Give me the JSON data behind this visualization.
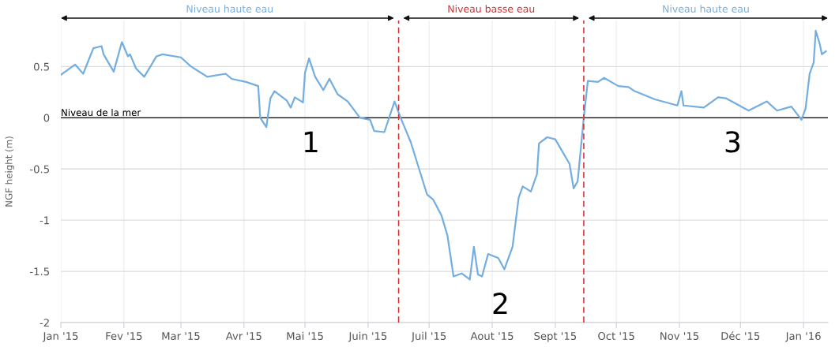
{
  "chart_data": {
    "type": "line",
    "ylabel": "NGF height (m)",
    "x": [
      "2015-01-01",
      "2015-01-08",
      "2015-01-12",
      "2015-01-17",
      "2015-01-21",
      "2015-01-22",
      "2015-01-27",
      "2015-01-31",
      "2015-02-03",
      "2015-02-04",
      "2015-02-07",
      "2015-02-11",
      "2015-02-17",
      "2015-02-20",
      "2015-03-01",
      "2015-03-06",
      "2015-03-14",
      "2015-03-23",
      "2015-03-26",
      "2015-04-02",
      "2015-04-08",
      "2015-04-09",
      "2015-04-12",
      "2015-04-14",
      "2015-04-16",
      "2015-04-22",
      "2015-04-24",
      "2015-04-26",
      "2015-04-30",
      "2015-05-01",
      "2015-05-03",
      "2015-05-06",
      "2015-05-10",
      "2015-05-13",
      "2015-05-17",
      "2015-05-22",
      "2015-05-28",
      "2015-06-02",
      "2015-06-04",
      "2015-06-09",
      "2015-06-14",
      "2015-06-17",
      "2015-06-22",
      "2015-06-30",
      "2015-07-03",
      "2015-07-07",
      "2015-07-10",
      "2015-07-13",
      "2015-07-17",
      "2015-07-21",
      "2015-07-23",
      "2015-07-25",
      "2015-07-27",
      "2015-07-30",
      "2015-08-04",
      "2015-08-07",
      "2015-08-11",
      "2015-08-14",
      "2015-08-16",
      "2015-08-20",
      "2015-08-23",
      "2015-08-24",
      "2015-08-28",
      "2015-09-01",
      "2015-09-08",
      "2015-09-10",
      "2015-09-12",
      "2015-09-15",
      "2015-09-17",
      "2015-09-22",
      "2015-09-25",
      "2015-10-02",
      "2015-10-07",
      "2015-10-10",
      "2015-10-20",
      "2015-10-31",
      "2015-11-02",
      "2015-11-03",
      "2015-11-13",
      "2015-11-20",
      "2015-11-24",
      "2015-12-05",
      "2015-12-14",
      "2015-12-19",
      "2015-12-26",
      "2015-12-31",
      "2016-01-02",
      "2016-01-04",
      "2016-01-06",
      "2016-01-07",
      "2016-01-09",
      "2016-01-10",
      "2016-01-12"
    ],
    "series": [
      {
        "color": "#74aee0",
        "values": [
          0.42,
          0.52,
          0.43,
          0.68,
          0.7,
          0.62,
          0.45,
          0.74,
          0.6,
          0.62,
          0.48,
          0.4,
          0.6,
          0.62,
          0.59,
          0.5,
          0.4,
          0.43,
          0.38,
          0.35,
          0.31,
          0.0,
          -0.09,
          0.19,
          0.26,
          0.17,
          0.1,
          0.2,
          0.15,
          0.44,
          0.58,
          0.4,
          0.27,
          0.38,
          0.23,
          0.16,
          0.0,
          -0.02,
          -0.13,
          -0.14,
          0.16,
          0.0,
          -0.24,
          -0.75,
          -0.8,
          -0.95,
          -1.15,
          -1.55,
          -1.52,
          -1.58,
          -1.26,
          -1.53,
          -1.55,
          -1.33,
          -1.37,
          -1.48,
          -1.26,
          -0.78,
          -0.67,
          -0.72,
          -0.55,
          -0.25,
          -0.19,
          -0.21,
          -0.45,
          -0.69,
          -0.62,
          0.0,
          0.36,
          0.35,
          0.39,
          0.31,
          0.3,
          0.26,
          0.18,
          0.12,
          0.26,
          0.12,
          0.1,
          0.2,
          0.19,
          0.07,
          0.16,
          0.07,
          0.11,
          -0.02,
          0.09,
          0.43,
          0.54,
          0.85,
          0.72,
          0.62,
          0.65
        ]
      }
    ],
    "xlim": [
      "2015-01-01",
      "2016-01-13"
    ],
    "xticks": [
      {
        "value": "2015-01-01",
        "label": "Jan '15"
      },
      {
        "value": "2015-02-01",
        "label": "Fev '15"
      },
      {
        "value": "2015-03-01",
        "label": "Mar '15"
      },
      {
        "value": "2015-04-01",
        "label": "Avr '15"
      },
      {
        "value": "2015-05-01",
        "label": "Mai '15"
      },
      {
        "value": "2015-06-01",
        "label": "Juin '15"
      },
      {
        "value": "2015-07-01",
        "label": "Juil '15"
      },
      {
        "value": "2015-08-01",
        "label": "Aout '15"
      },
      {
        "value": "2015-09-01",
        "label": "Sept '15"
      },
      {
        "value": "2015-10-01",
        "label": "Oct '15"
      },
      {
        "value": "2015-11-01",
        "label": "Nov '15"
      },
      {
        "value": "2015-12-01",
        "label": "Déc '15"
      },
      {
        "value": "2016-01-01",
        "label": "Jan '16"
      }
    ],
    "ylim": [
      -2,
      0.95
    ],
    "yticks": [
      -2,
      -1.5,
      -1,
      -0.5,
      0,
      0.5
    ],
    "grid": true,
    "ref_lines": [
      {
        "axis": "y",
        "value": 0,
        "label": "Niveau de la mer",
        "color": "#000000",
        "line_style": "solid"
      },
      {
        "axis": "x",
        "value": "2015-06-16",
        "color": "#d62e2e",
        "line_style": "dashed"
      },
      {
        "axis": "x",
        "value": "2015-09-15",
        "color": "#d62e2e",
        "line_style": "dashed"
      }
    ],
    "annotations": [
      "Niveau haute eau",
      "Niveau basse eau",
      "Niveau haute eau",
      "1",
      "2",
      "3"
    ]
  }
}
